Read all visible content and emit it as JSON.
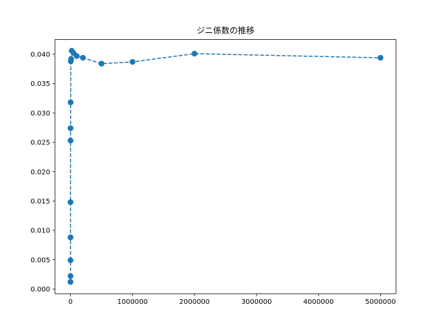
{
  "chart_data": {
    "type": "line",
    "title": "ジニ係数の推移",
    "xlabel": "",
    "ylabel": "",
    "xlim": [
      -250000,
      5250000
    ],
    "ylim": [
      -0.0008,
      0.0425
    ],
    "grid": false,
    "x_ticks": [
      0,
      1000000,
      2000000,
      3000000,
      4000000,
      5000000
    ],
    "x_tick_labels": [
      "0",
      "1000000",
      "2000000",
      "3000000",
      "4000000",
      "5000000"
    ],
    "y_ticks": [
      0.0,
      0.005,
      0.01,
      0.015,
      0.02,
      0.025,
      0.03,
      0.035,
      0.04
    ],
    "y_tick_labels": [
      "0.000",
      "0.005",
      "0.010",
      "0.015",
      "0.020",
      "0.025",
      "0.030",
      "0.035",
      "0.040"
    ],
    "series": [
      {
        "color": "#1f77b4",
        "line_style": "dashed",
        "marker": "circle",
        "x": [
          10,
          20,
          50,
          100,
          200,
          500,
          1000,
          2000,
          5000,
          10000,
          20000,
          50000,
          100000,
          200000,
          500000,
          1000000,
          2000000,
          5000000
        ],
        "y": [
          0.0012,
          0.0022,
          0.0049,
          0.0088,
          0.0148,
          0.0253,
          0.0274,
          0.0318,
          0.0388,
          0.0392,
          0.0406,
          0.0402,
          0.0397,
          0.0394,
          0.0384,
          0.0387,
          0.0401,
          0.0394
        ]
      }
    ]
  }
}
